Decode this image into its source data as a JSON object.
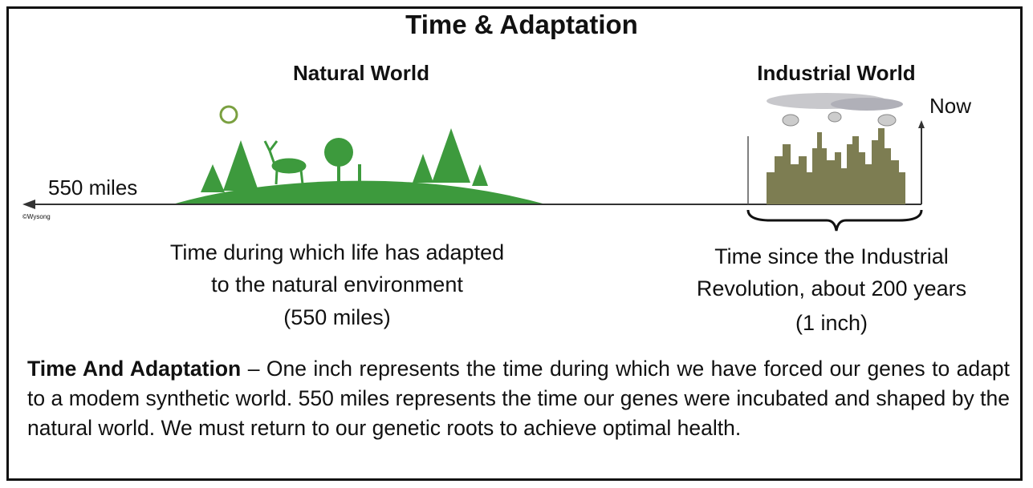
{
  "header": {
    "title": "Time & Adaptation"
  },
  "panels": [
    {
      "label": "Natural World",
      "distance": "550 miles",
      "caption": [
        "Time during which life has adapted",
        "to the natural environment",
        "(550 miles)"
      ]
    },
    {
      "label": "Industrial World",
      "marker": "Now",
      "caption": [
        "Time since the Industrial",
        "Revolution, about 200 years",
        "(1 inch)"
      ]
    }
  ],
  "credit": "©Wysong",
  "footer": {
    "term": "Time And Adaptation",
    "text": "– One inch represents the time during which we have forced our genes to adapt to a modem synthetic world. 550 miles represents the time our genes were incubated and shaped by the natural world. We must return to our genetic roots to achieve optimal health."
  }
}
